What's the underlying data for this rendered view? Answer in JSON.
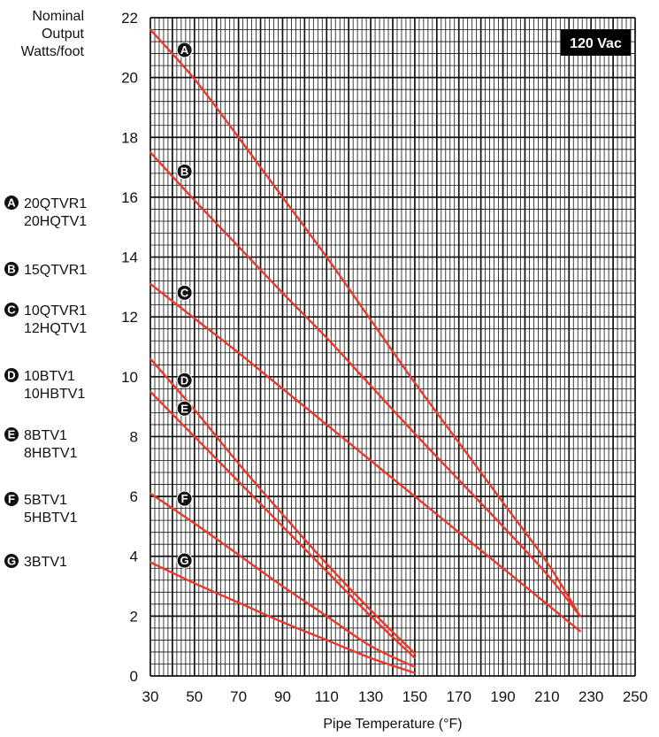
{
  "chart_data": {
    "type": "line",
    "title": "",
    "ylabel_lines": [
      "Nominal",
      "Output",
      "Watts/foot"
    ],
    "xlabel": "Pipe Temperature (°F)",
    "voltage_badge": "120 Vac",
    "xlim": [
      30,
      250
    ],
    "ylim": [
      0,
      22
    ],
    "x_ticks": [
      "30",
      "50",
      "70",
      "90",
      "110",
      "130",
      "150",
      "170",
      "190",
      "210",
      "230",
      "250"
    ],
    "y_ticks": [
      "0",
      "2",
      "4",
      "6",
      "8",
      "10",
      "12",
      "14",
      "16",
      "18",
      "20",
      "22"
    ],
    "grid": true,
    "line_color": "#e8392a",
    "series": [
      {
        "letter": "A",
        "models": [
          "20QTVR1",
          "20HQTV1"
        ],
        "points": [
          [
            30,
            21.6
          ],
          [
            50,
            19.95
          ],
          [
            70,
            18.0
          ],
          [
            90,
            16.0
          ],
          [
            110,
            14.0
          ],
          [
            130,
            11.9
          ],
          [
            150,
            9.8
          ],
          [
            170,
            7.8
          ],
          [
            190,
            5.8
          ],
          [
            210,
            3.8
          ],
          [
            225,
            2.0
          ]
        ]
      },
      {
        "letter": "B",
        "models": [
          "15QTVR1"
        ],
        "points": [
          [
            30,
            17.5
          ],
          [
            50,
            15.9
          ],
          [
            70,
            14.35
          ],
          [
            90,
            12.8
          ],
          [
            110,
            11.3
          ],
          [
            130,
            9.7
          ],
          [
            150,
            8.1
          ],
          [
            170,
            6.55
          ],
          [
            190,
            5.0
          ],
          [
            210,
            3.4
          ],
          [
            225,
            2.0
          ]
        ]
      },
      {
        "letter": "C",
        "models": [
          "10QTVR1",
          "12HQTV1"
        ],
        "points": [
          [
            30,
            13.1
          ],
          [
            50,
            11.95
          ],
          [
            70,
            10.8
          ],
          [
            90,
            9.6
          ],
          [
            110,
            8.4
          ],
          [
            130,
            7.2
          ],
          [
            150,
            6.0
          ],
          [
            170,
            4.8
          ],
          [
            190,
            3.6
          ],
          [
            210,
            2.4
          ],
          [
            225,
            1.5
          ]
        ]
      },
      {
        "letter": "D",
        "models": [
          "10BTV1",
          "10HBTV1"
        ],
        "points": [
          [
            30,
            10.6
          ],
          [
            50,
            8.9
          ],
          [
            70,
            7.1
          ],
          [
            90,
            5.4
          ],
          [
            110,
            3.75
          ],
          [
            130,
            2.2
          ],
          [
            150,
            0.75
          ]
        ]
      },
      {
        "letter": "E",
        "models": [
          "8BTV1",
          "8HBTV1"
        ],
        "points": [
          [
            30,
            9.5
          ],
          [
            50,
            8.0
          ],
          [
            70,
            6.5
          ],
          [
            90,
            5.0
          ],
          [
            110,
            3.5
          ],
          [
            130,
            2.0
          ],
          [
            150,
            0.6
          ]
        ]
      },
      {
        "letter": "F",
        "models": [
          "5BTV1",
          "5HBTV1"
        ],
        "points": [
          [
            30,
            6.1
          ],
          [
            50,
            5.1
          ],
          [
            70,
            4.05
          ],
          [
            90,
            3.0
          ],
          [
            110,
            2.0
          ],
          [
            130,
            1.0
          ],
          [
            150,
            0.3
          ]
        ]
      },
      {
        "letter": "G",
        "models": [
          "3BTV1"
        ],
        "points": [
          [
            30,
            3.8
          ],
          [
            50,
            3.1
          ],
          [
            70,
            2.45
          ],
          [
            90,
            1.8
          ],
          [
            110,
            1.2
          ],
          [
            130,
            0.6
          ],
          [
            150,
            0.1
          ]
        ]
      }
    ]
  }
}
